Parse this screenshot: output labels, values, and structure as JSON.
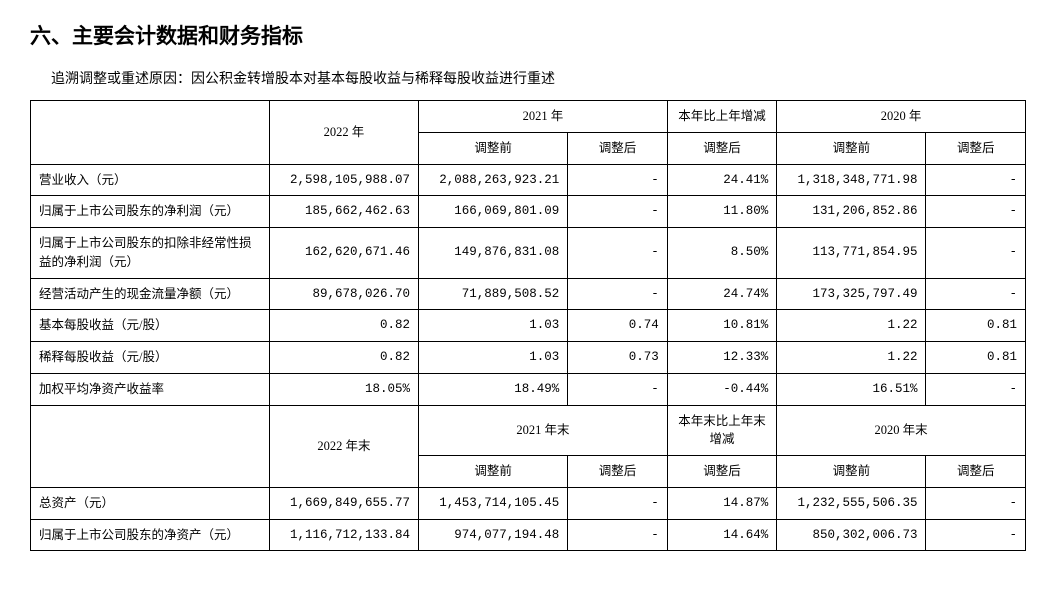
{
  "section_title": "六、主要会计数据和财务指标",
  "note": "追溯调整或重述原因：因公积金转增股本对基本每股收益与稀释每股收益进行重述",
  "header": {
    "y2022": "2022 年",
    "y2021": "2021 年",
    "change": "本年比上年增减",
    "y2020": "2020 年",
    "adj_before": "调整前",
    "adj_after": "调整后",
    "y2022_end": "2022 年末",
    "y2021_end": "2021 年末",
    "change_end": "本年末比上年末增减",
    "y2020_end": "2020 年末"
  },
  "rows_top": [
    {
      "label": "营业收入（元）",
      "c1": "2,598,105,988.07",
      "c2": "2,088,263,923.21",
      "c3": "-",
      "c4": "24.41%",
      "c5": "1,318,348,771.98",
      "c6": "-"
    },
    {
      "label": "归属于上市公司股东的净利润（元）",
      "c1": "185,662,462.63",
      "c2": "166,069,801.09",
      "c3": "-",
      "c4": "11.80%",
      "c5": "131,206,852.86",
      "c6": "-"
    },
    {
      "label": "归属于上市公司股东的扣除非经常性损益的净利润（元）",
      "c1": "162,620,671.46",
      "c2": "149,876,831.08",
      "c3": "-",
      "c4": "8.50%",
      "c5": "113,771,854.95",
      "c6": "-"
    },
    {
      "label": "经营活动产生的现金流量净额（元）",
      "c1": "89,678,026.70",
      "c2": "71,889,508.52",
      "c3": "-",
      "c4": "24.74%",
      "c5": "173,325,797.49",
      "c6": "-"
    },
    {
      "label": "基本每股收益（元/股）",
      "c1": "0.82",
      "c2": "1.03",
      "c3": "0.74",
      "c4": "10.81%",
      "c5": "1.22",
      "c6": "0.81"
    },
    {
      "label": "稀释每股收益（元/股）",
      "c1": "0.82",
      "c2": "1.03",
      "c3": "0.73",
      "c4": "12.33%",
      "c5": "1.22",
      "c6": "0.81"
    },
    {
      "label": "加权平均净资产收益率",
      "c1": "18.05%",
      "c2": "18.49%",
      "c3": "-",
      "c4": "-0.44%",
      "c5": "16.51%",
      "c6": "-"
    }
  ],
  "rows_bottom": [
    {
      "label": "总资产（元）",
      "c1": "1,669,849,655.77",
      "c2": "1,453,714,105.45",
      "c3": "-",
      "c4": "14.87%",
      "c5": "1,232,555,506.35",
      "c6": "-"
    },
    {
      "label": "归属于上市公司股东的净资产（元）",
      "c1": "1,116,712,133.84",
      "c2": "974,077,194.48",
      "c3": "-",
      "c4": "14.64%",
      "c5": "850,302,006.73",
      "c6": "-"
    }
  ],
  "style": {
    "border_color": "#000000",
    "bg_color": "#ffffff",
    "text_color": "#000000",
    "title_fontsize": 21,
    "body_fontsize": 13,
    "cell_fontsize": 12.5
  }
}
